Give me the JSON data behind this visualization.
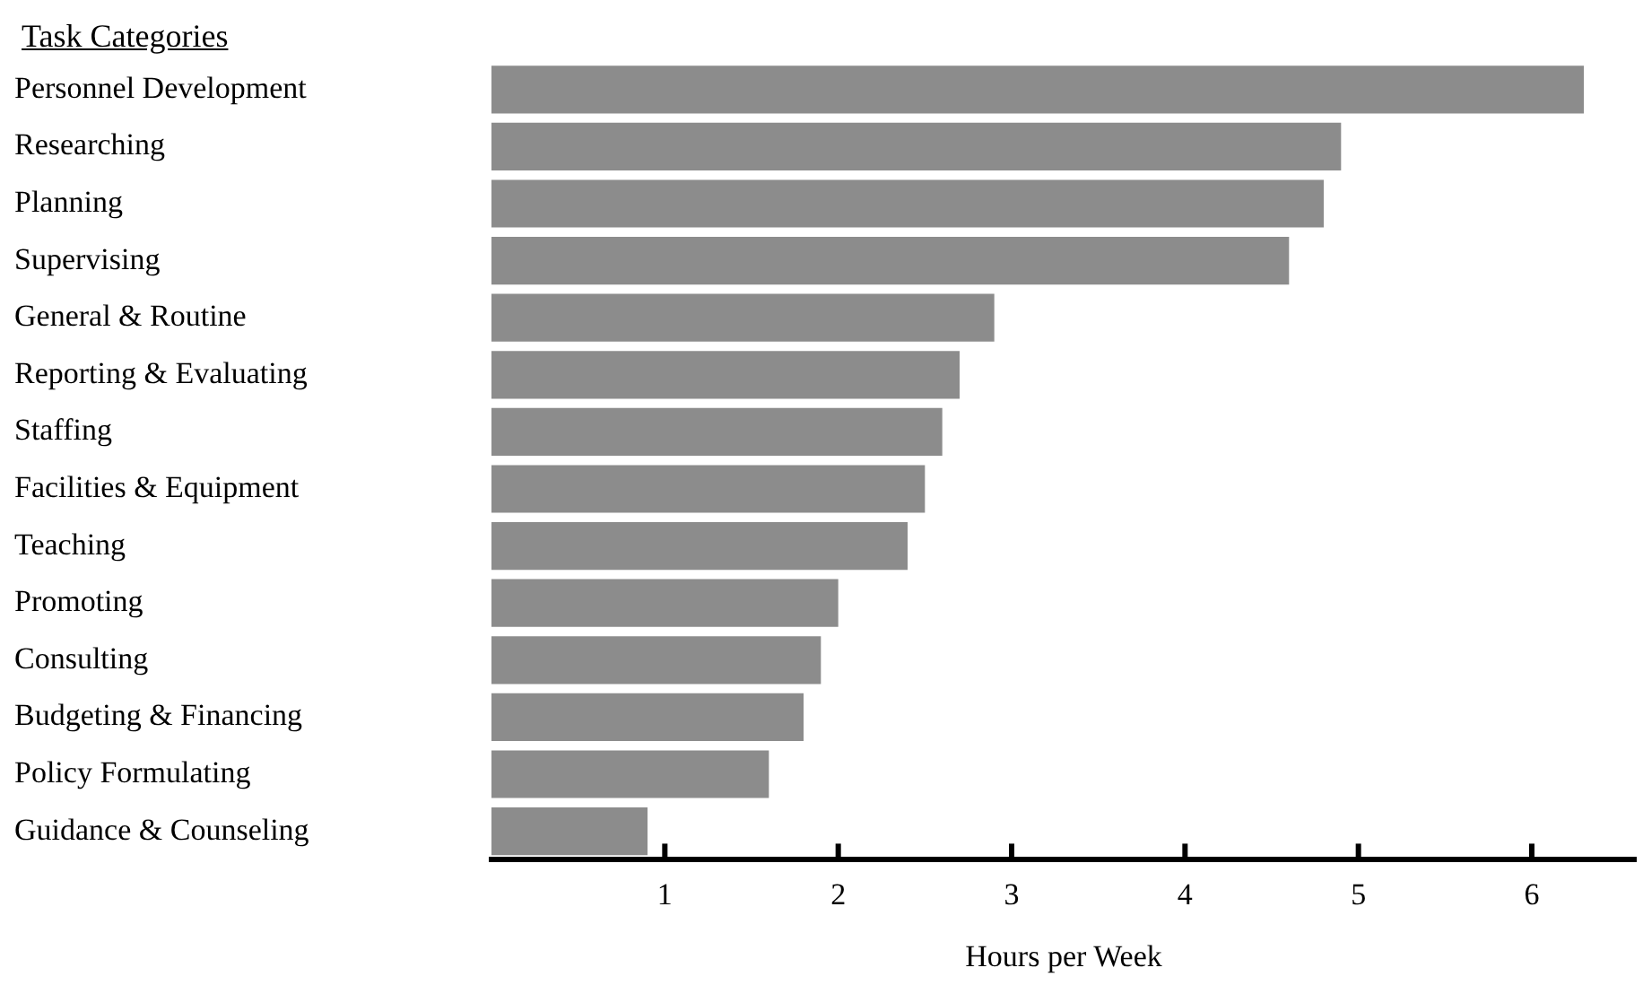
{
  "chart_data": {
    "type": "bar",
    "orientation": "horizontal",
    "ylabel": "Task Categories",
    "xlabel": "Hours per Week",
    "categories": [
      "Personnel Development",
      "Researching",
      "Planning",
      "Supervising",
      "General & Routine",
      "Reporting & Evaluating",
      "Staffing",
      "Facilities & Equipment",
      "Teaching",
      "Promoting",
      "Consulting",
      "Budgeting & Financing",
      "Policy Formulating",
      "Guidance & Counseling"
    ],
    "values": [
      6.3,
      4.9,
      4.8,
      4.6,
      2.9,
      2.7,
      2.6,
      2.5,
      2.4,
      2.0,
      1.9,
      1.8,
      1.6,
      0.9
    ],
    "color": "#8c8c8c",
    "xlim": [
      0,
      6.6
    ],
    "xticks": [
      1,
      2,
      3,
      4,
      5,
      6
    ],
    "grid": false,
    "legend": false
  }
}
